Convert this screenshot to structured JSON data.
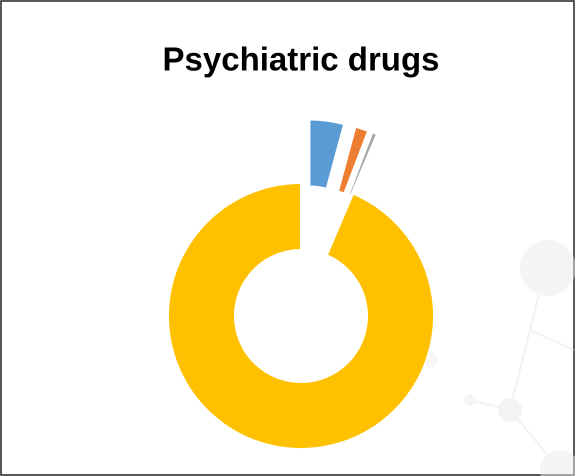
{
  "chart_data": {
    "type": "donut",
    "title": "Psychiatric drugs",
    "values": [
      4.2,
      1.6,
      0.6,
      93.6
    ],
    "colors": [
      "#5b9bd5",
      "#ed7d31",
      "#a5a5a5",
      "#ffc000"
    ],
    "exploded": [
      true,
      true,
      true,
      false
    ]
  }
}
